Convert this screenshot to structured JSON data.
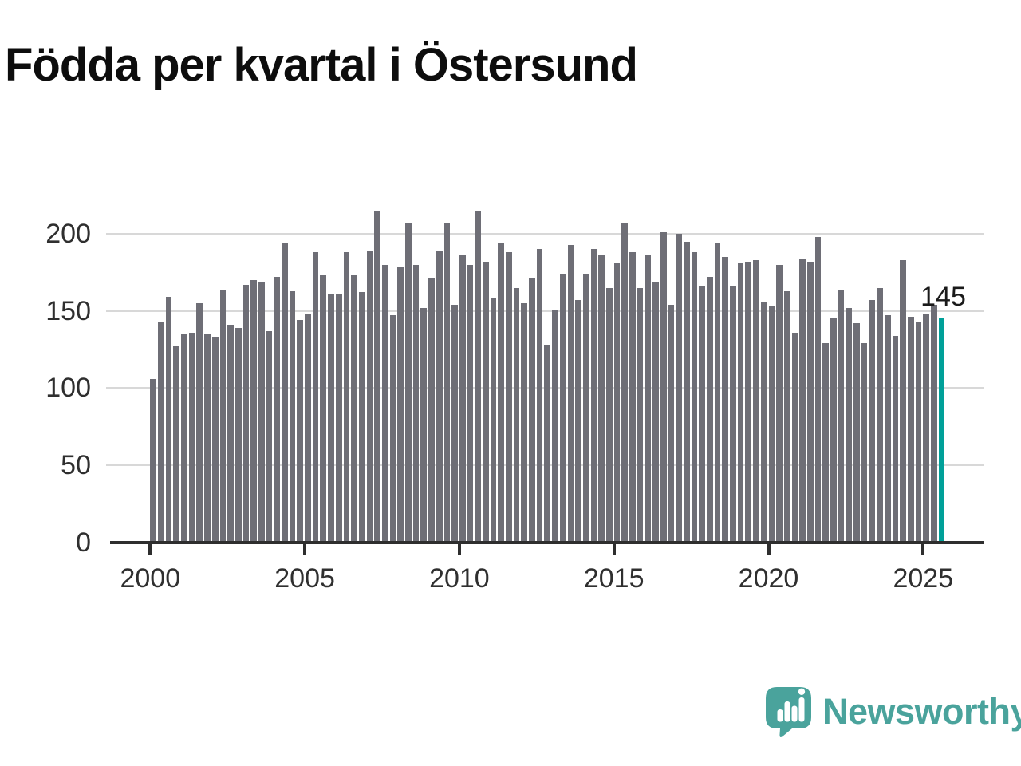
{
  "chart_data": {
    "type": "bar",
    "title": "Födda per kvartal i Östersund",
    "frequency": "quarterly",
    "x_range": "2000 Q1 – 2025 Q3",
    "values_by_year": {
      "2000": [
        106,
        143,
        159,
        127
      ],
      "2001": [
        135,
        136,
        155,
        135
      ],
      "2002": [
        133,
        164,
        141,
        139
      ],
      "2003": [
        167,
        170,
        169,
        137
      ],
      "2004": [
        172,
        194,
        163,
        144
      ],
      "2005": [
        148,
        188,
        173,
        161
      ],
      "2006": [
        161,
        188,
        173,
        162
      ],
      "2007": [
        189,
        215,
        180,
        147
      ],
      "2008": [
        179,
        207,
        180,
        152
      ],
      "2009": [
        171,
        189,
        207,
        154
      ],
      "2010": [
        186,
        180,
        215,
        182
      ],
      "2011": [
        158,
        194,
        188,
        165
      ],
      "2012": [
        155,
        171,
        190,
        128
      ],
      "2013": [
        151,
        174,
        193,
        157
      ],
      "2014": [
        174,
        190,
        186,
        165
      ],
      "2015": [
        181,
        207,
        188,
        165
      ],
      "2016": [
        186,
        169,
        201,
        154
      ],
      "2017": [
        200,
        195,
        188,
        166
      ],
      "2018": [
        172,
        194,
        185,
        166
      ],
      "2019": [
        181,
        182,
        183,
        156
      ],
      "2020": [
        153,
        180,
        163,
        136
      ],
      "2021": [
        184,
        182,
        198,
        129
      ],
      "2022": [
        145,
        164,
        152,
        142
      ],
      "2023": [
        129,
        157,
        165,
        147
      ],
      "2024": [
        134,
        183,
        146,
        143
      ],
      "2025": [
        148,
        154,
        145
      ]
    },
    "highlight_last_bar": true,
    "last_value_label": "145",
    "yticks": [
      0,
      50,
      100,
      150,
      200
    ],
    "xticks": [
      2000,
      2005,
      2010,
      2015,
      2020,
      2025
    ],
    "ylim": [
      0,
      230
    ],
    "grid": true,
    "legend": false,
    "colors": {
      "bar": "#6e6e76",
      "highlight": "#00a099",
      "axis": "#2e2e2e",
      "gridline": "#d8d8d8",
      "tick_label": "#2f2f2f"
    }
  },
  "branding": {
    "name": "Newsworthy",
    "color": "#4aa39c",
    "icon": "bar-chart-speech-bubble-icon"
  }
}
